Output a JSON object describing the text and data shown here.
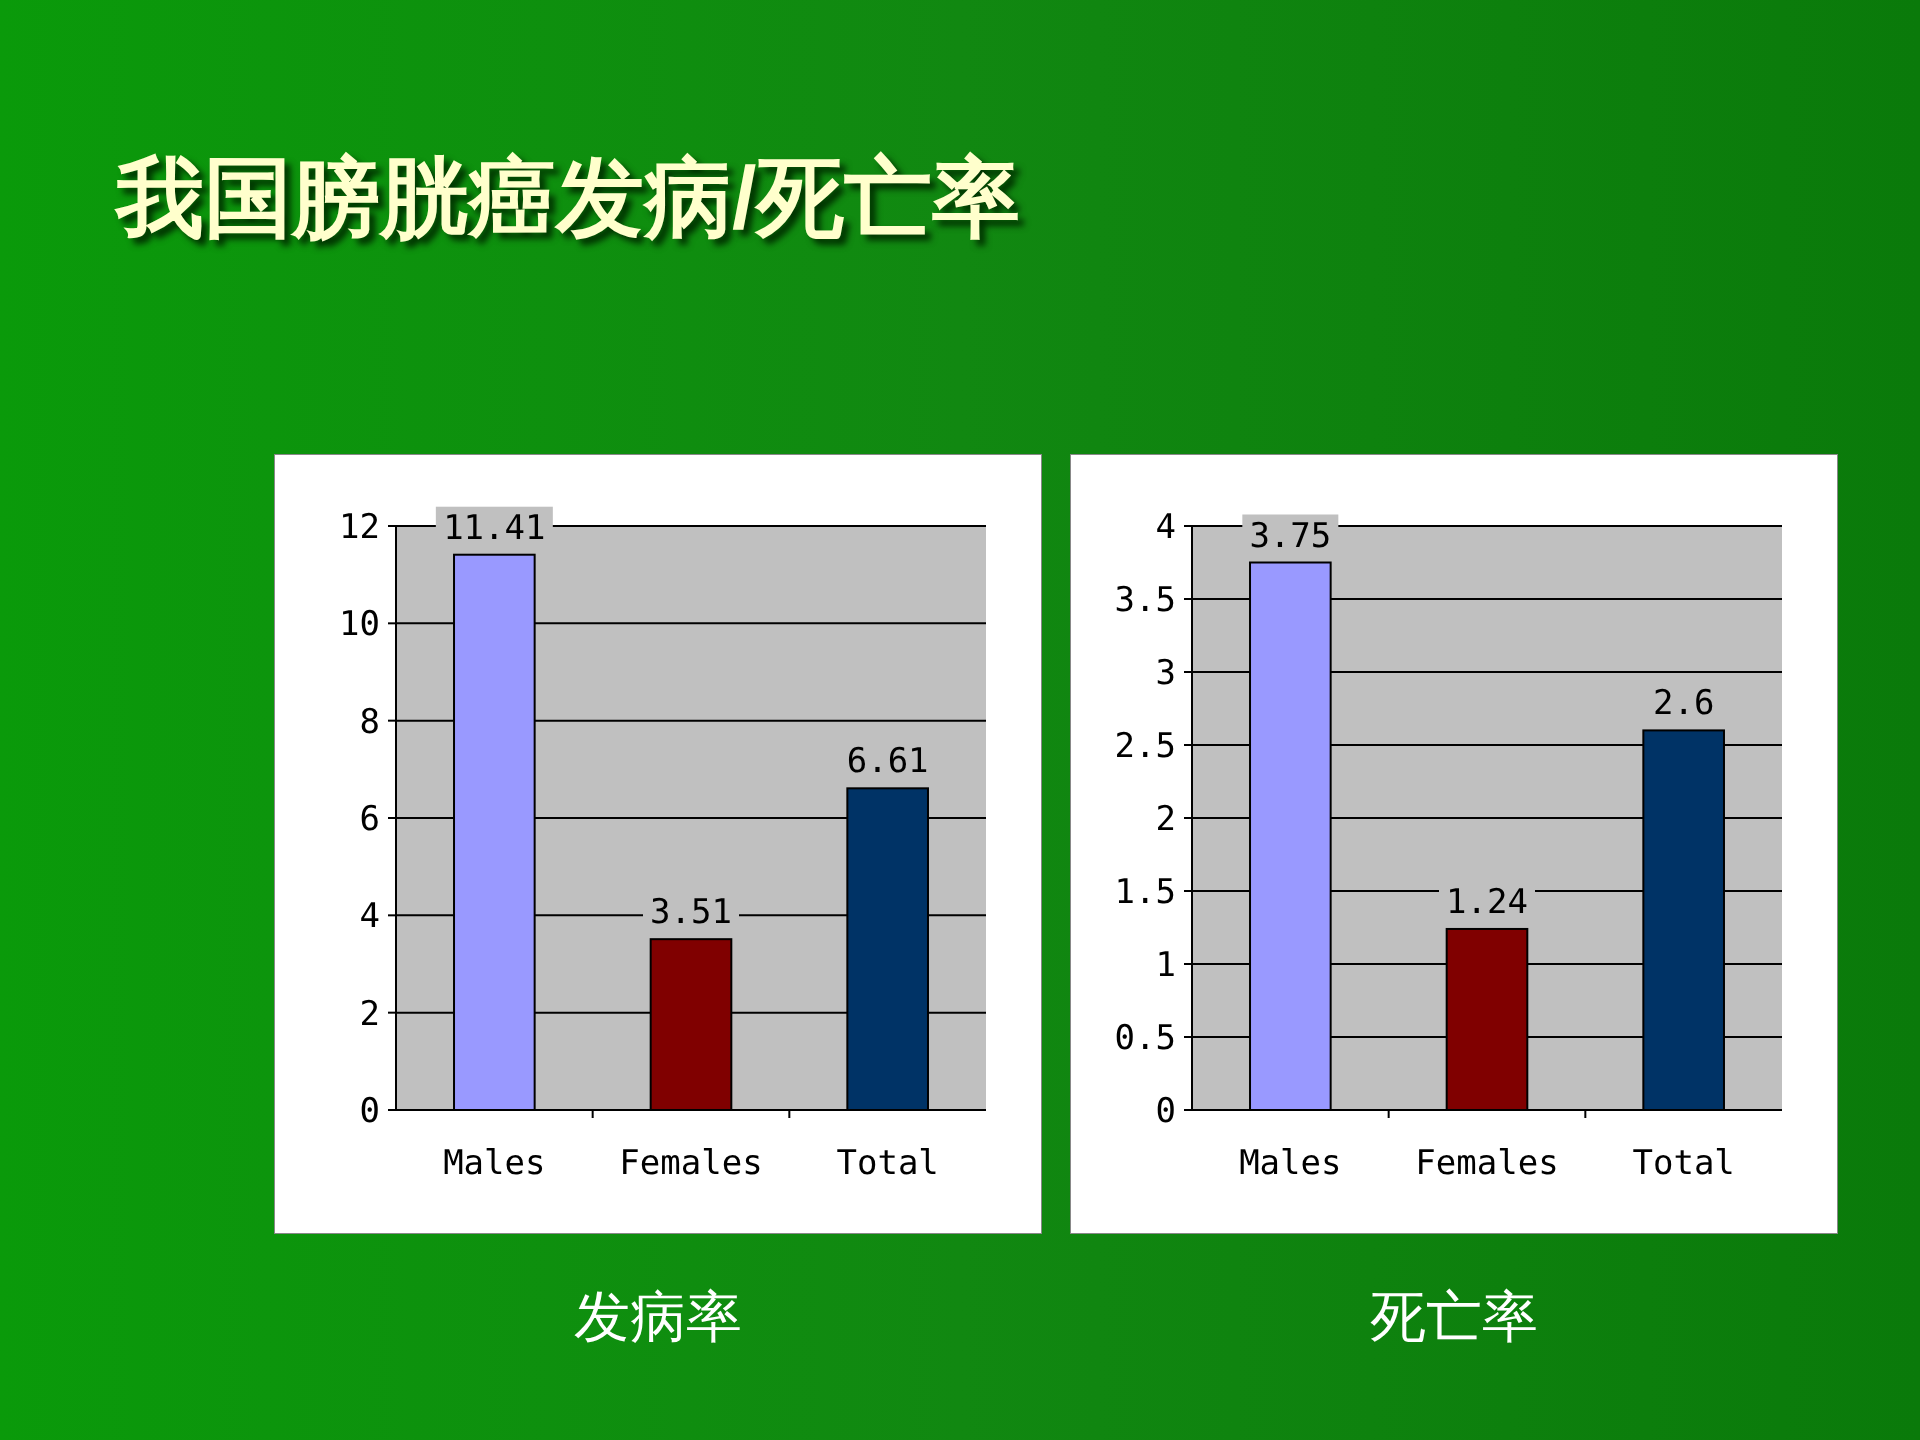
{
  "chart_data": [
    {
      "type": "bar",
      "title": "我国膀胱癌发病/死亡率",
      "xlabel": "发病率",
      "categories": [
        "Males",
        "Females",
        "Total"
      ],
      "values": [
        11.41,
        3.51,
        6.61
      ],
      "colors": [
        "#9999ff",
        "#800000",
        "#003366"
      ],
      "ylim": [
        0,
        12
      ],
      "yticks": [
        0,
        2,
        4,
        6,
        8,
        10,
        12
      ],
      "grid": "y",
      "data_labels": true
    },
    {
      "type": "bar",
      "xlabel": "死亡率",
      "categories": [
        "Males",
        "Females",
        "Total"
      ],
      "values": [
        3.75,
        1.24,
        2.6
      ],
      "colors": [
        "#9999ff",
        "#800000",
        "#003366"
      ],
      "ylim": [
        0,
        4
      ],
      "yticks": [
        0,
        0.5,
        1,
        1.5,
        2,
        2.5,
        3,
        3.5,
        4
      ],
      "grid": "y",
      "data_labels": true
    }
  ]
}
